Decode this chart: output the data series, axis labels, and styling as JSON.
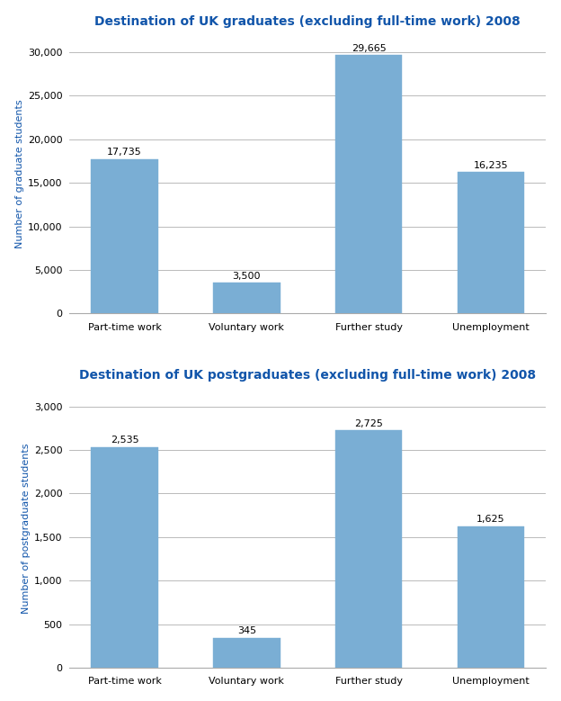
{
  "grad_title": "Destination of UK graduates (excluding full-time work) 2008",
  "postgrad_title": "Destination of UK postgraduates (excluding full-time work) 2008",
  "categories": [
    "Part-time work",
    "Voluntary work",
    "Further study",
    "Unemployment"
  ],
  "grad_values": [
    17735,
    3500,
    29665,
    16235
  ],
  "grad_labels": [
    "17,735",
    "3,500",
    "29,665",
    "16,235"
  ],
  "postgrad_values": [
    2535,
    345,
    2725,
    1625
  ],
  "postgrad_labels": [
    "2,535",
    "345",
    "2,725",
    "1,625"
  ],
  "bar_color": "#7aaed4",
  "title_color": "#1155aa",
  "ylabel_color": "#1155aa",
  "grad_ylabel": "Number of graduate students",
  "postgrad_ylabel": "Number of postgraduate students",
  "grad_ylim": [
    0,
    32000
  ],
  "grad_yticks": [
    0,
    5000,
    10000,
    15000,
    20000,
    25000,
    30000
  ],
  "postgrad_ylim": [
    0,
    3200
  ],
  "postgrad_yticks": [
    0,
    500,
    1000,
    1500,
    2000,
    2500,
    3000
  ],
  "background_color": "#ffffff",
  "grid_color": "#b0b0b0",
  "title_fontsize": 10,
  "ylabel_fontsize": 8,
  "tick_fontsize": 8,
  "annot_fontsize": 8,
  "bar_width": 0.55
}
